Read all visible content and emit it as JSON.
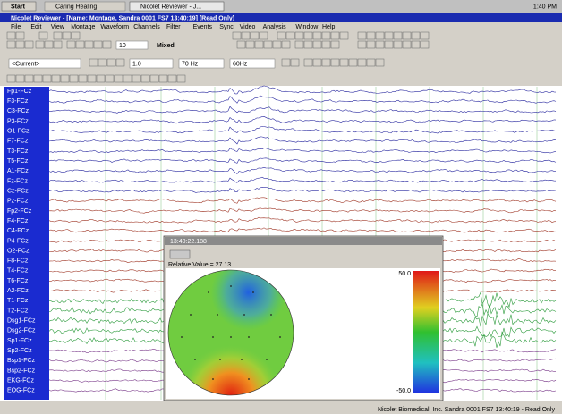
{
  "taskbar": {
    "start": "Start",
    "tasks": [
      "Caring Healing",
      "Nicolet Reviewer - J..."
    ],
    "clock": "1:40 PM"
  },
  "window": {
    "title": "Nicolet Reviewer - [Name: Montage, Sandra 0001 FS7 13:40:19] (Read Only)",
    "menu": [
      "File",
      "Edit",
      "View",
      "Montage",
      "Waveform",
      "Channels",
      "Filter",
      "Events",
      "Sync",
      "Video",
      "Analysis",
      "Window",
      "Help"
    ]
  },
  "toolbar": {
    "page": "10",
    "mode": "Mixed",
    "montage": "<Current>",
    "lff": "1.0",
    "hff": "70 Hz",
    "notch": "60Hz"
  },
  "channels": [
    "Fp1-FCz",
    "F3-FCz",
    "C3-FCz",
    "P3-FCz",
    "O1-FCz",
    "F7-FCz",
    "T3-FCz",
    "T5-FCz",
    "A1-FCz",
    "Fz-FCz",
    "Cz-FCz",
    "Pz-FCz",
    "Fp2-FCz",
    "F4-FCz",
    "C4-FCz",
    "P4-FCz",
    "O2-FCz",
    "F8-FCz",
    "T4-FCz",
    "T6-FCz",
    "A2-FCz",
    "T1-FCz",
    "T2-FCz",
    "Dsg1-FCz",
    "Dsg2-FCz",
    "Sp1-FCz",
    "Sp2-FCz",
    "Bsp1-FCz",
    "Bsp2-FCz",
    "EKG-FCz",
    "EOG-FCz"
  ],
  "topomap": {
    "title": "13:40:22.188",
    "value_label": "Relative Value = 27.13",
    "scale_max": "50.0",
    "scale_min": "-50.0"
  },
  "status": "Nicolet Biomedical, Inc. Sandra 0001 FS7 13:40:19 - Read Only"
}
